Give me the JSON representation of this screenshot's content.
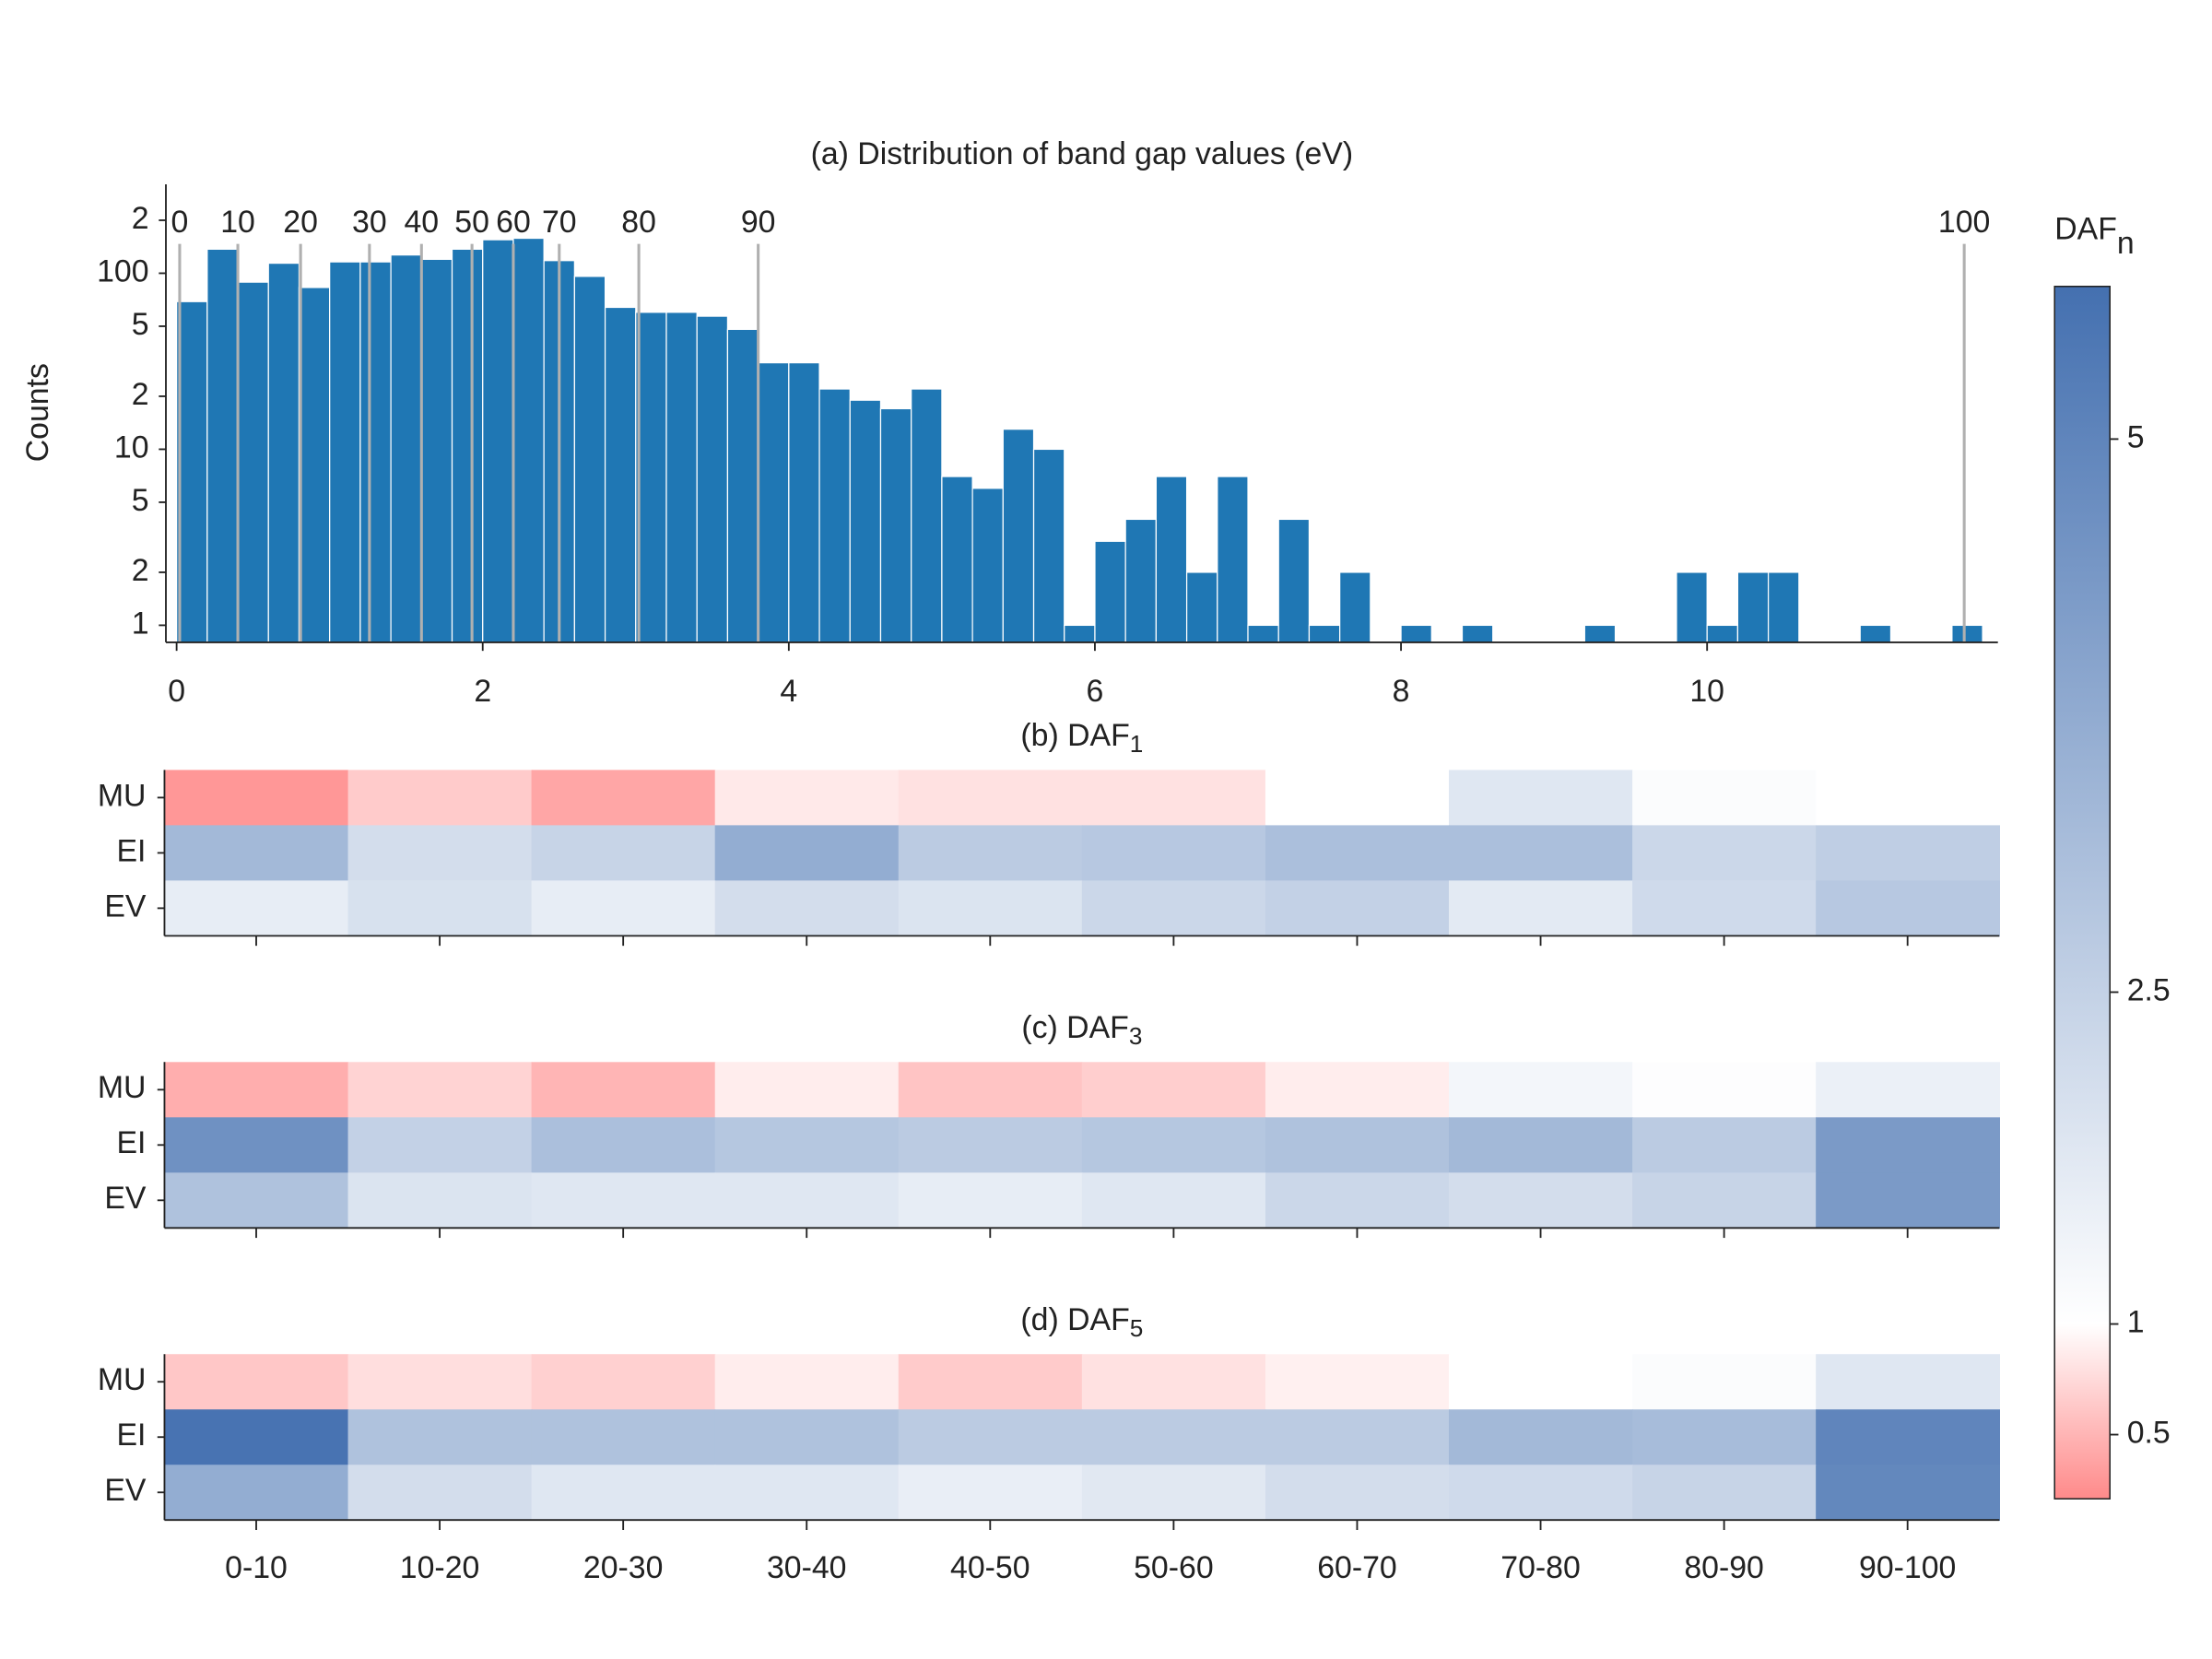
{
  "chart_data": [
    {
      "type": "histogram",
      "title": "(a) Distribution of band gap values (eV)",
      "ylabel": "Counts",
      "bins": [
        0,
        0.2,
        0.4,
        0.6,
        0.8,
        1.0,
        1.2,
        1.4,
        1.6,
        1.8,
        2.0,
        2.2,
        2.4,
        2.6,
        2.8,
        3.0,
        3.2,
        3.4,
        3.6,
        3.8,
        4.0,
        4.2,
        4.4,
        4.6,
        4.8,
        5.0,
        5.2,
        5.4,
        5.6,
        5.8,
        6.0,
        6.2,
        6.4,
        6.6,
        6.8,
        7.0,
        7.2,
        7.4,
        7.6,
        7.8,
        8.0,
        8.2,
        8.4,
        8.6,
        8.8,
        9.0,
        9.2,
        9.4,
        9.6,
        9.8,
        10.0,
        10.2,
        10.4,
        10.6,
        10.8,
        11.0,
        11.2,
        11.4,
        11.6,
        11.8
      ],
      "counts": [
        69,
        137,
        89,
        114,
        83,
        116,
        116,
        127,
        120,
        137,
        155,
        158,
        118,
        96,
        64,
        60,
        60,
        57,
        48,
        31,
        31,
        22,
        19,
        17,
        22,
        7,
        6,
        13,
        10,
        1,
        3,
        4,
        7,
        2,
        7,
        1,
        4,
        1,
        2,
        0,
        1,
        0,
        1,
        0,
        0,
        0,
        1,
        0,
        0,
        2,
        1,
        2,
        2,
        0,
        0,
        1,
        0,
        0,
        1
      ],
      "color": "#1f77b4",
      "xlim": [
        -0.07,
        11.9
      ],
      "xticks": [
        0,
        2,
        4,
        6,
        8,
        10
      ],
      "yscale": "log",
      "ylim": [
        0.8,
        320
      ],
      "yticks": [
        1,
        2,
        5,
        10,
        {
          "value": 20,
          "label": "2"
        },
        {
          "value": 50,
          "label": "5"
        },
        100,
        {
          "value": 200,
          "label": "2"
        }
      ],
      "percentile_lines": {
        "labels": [
          0,
          10,
          20,
          30,
          40,
          50,
          60,
          70,
          80,
          90,
          100
        ],
        "x": [
          0.02,
          0.4,
          0.81,
          1.26,
          1.6,
          1.93,
          2.2,
          2.5,
          3.02,
          3.8,
          11.68
        ],
        "color": "#b0b0b0"
      }
    },
    {
      "type": "heatmap",
      "title": "(b) DAF",
      "title_subscript": "1",
      "rows": [
        "MU",
        "EI",
        "EV"
      ],
      "values": [
        [
          0.3,
          0.65,
          0.4,
          0.85,
          0.8,
          0.8,
          1.0,
          1.8,
          1.1,
          1.0
        ],
        [
          3.3,
          2.1,
          2.4,
          3.7,
          2.7,
          2.8,
          3.1,
          3.1,
          2.3,
          2.6
        ],
        [
          1.6,
          2.0,
          1.6,
          2.1,
          1.9,
          2.3,
          2.5,
          1.7,
          2.2,
          2.8
        ]
      ]
    },
    {
      "type": "heatmap",
      "title": "(c) DAF",
      "title_subscript": "3",
      "rows": [
        "MU",
        "EI",
        "EV"
      ],
      "values": [
        [
          0.45,
          0.7,
          0.5,
          0.88,
          0.6,
          0.67,
          0.88,
          1.3,
          1.05,
          1.5
        ],
        [
          4.6,
          2.5,
          3.1,
          2.85,
          2.7,
          2.85,
          3.0,
          3.3,
          2.7,
          4.3
        ],
        [
          3.0,
          1.9,
          1.8,
          1.8,
          1.6,
          1.8,
          2.3,
          2.1,
          2.4,
          4.3
        ]
      ]
    },
    {
      "type": "heatmap",
      "title": "(d) DAF",
      "title_subscript": "5",
      "rows": [
        "MU",
        "EI",
        "EV"
      ],
      "categories": [
        "0-10",
        "10-20",
        "20-30",
        "30-40",
        "40-50",
        "50-60",
        "60-70",
        "70-80",
        "80-90",
        "90-100"
      ],
      "values": [
        [
          0.62,
          0.78,
          0.68,
          0.88,
          0.65,
          0.8,
          0.9,
          1.0,
          1.1,
          1.8
        ],
        [
          5.6,
          3.0,
          3.0,
          3.0,
          2.7,
          2.7,
          2.7,
          3.3,
          3.2,
          5.0
        ],
        [
          3.7,
          2.1,
          1.8,
          1.8,
          1.55,
          1.75,
          2.1,
          2.2,
          2.4,
          4.9
        ]
      ]
    },
    {
      "type": "colorbar",
      "label": "DAF",
      "label_subscript": "n",
      "clim": [
        0.21,
        5.69
      ],
      "center": 1,
      "colors": [
        "#ff8a8a",
        "#ffffff",
        "#4470b0"
      ],
      "ticks": [
        0.5,
        1,
        2.5,
        5
      ]
    }
  ]
}
